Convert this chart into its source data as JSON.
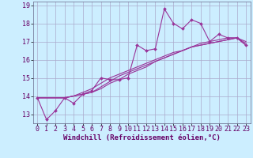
{
  "xlabel": "Windchill (Refroidissement éolien,°C)",
  "background_color": "#cceeff",
  "grid_color": "#aaaacc",
  "line_color": "#993399",
  "x_data": [
    0,
    1,
    2,
    3,
    4,
    5,
    6,
    7,
    8,
    9,
    10,
    11,
    12,
    13,
    14,
    15,
    16,
    17,
    18,
    19,
    20,
    21,
    22,
    23
  ],
  "y_series1": [
    13.9,
    12.7,
    13.2,
    13.9,
    13.6,
    14.1,
    14.3,
    15.0,
    14.9,
    14.9,
    15.0,
    16.8,
    16.5,
    16.6,
    18.8,
    18.0,
    17.7,
    18.2,
    18.0,
    17.0,
    17.4,
    17.2,
    17.2,
    16.8
  ],
  "y_series2": [
    13.9,
    13.9,
    13.9,
    13.9,
    14.0,
    14.2,
    14.4,
    14.7,
    15.0,
    15.2,
    15.4,
    15.6,
    15.8,
    16.0,
    16.2,
    16.4,
    16.5,
    16.7,
    16.9,
    17.0,
    17.1,
    17.2,
    17.2,
    17.0
  ],
  "y_series3": [
    13.9,
    13.9,
    13.9,
    13.9,
    14.0,
    14.1,
    14.2,
    14.5,
    14.8,
    15.1,
    15.3,
    15.5,
    15.7,
    15.9,
    16.1,
    16.3,
    16.5,
    16.7,
    16.8,
    16.9,
    17.0,
    17.1,
    17.2,
    16.9
  ],
  "y_series4": [
    13.9,
    13.9,
    13.9,
    13.9,
    14.0,
    14.1,
    14.2,
    14.4,
    14.7,
    14.9,
    15.2,
    15.4,
    15.6,
    15.9,
    16.1,
    16.3,
    16.5,
    16.7,
    16.8,
    16.9,
    17.0,
    17.1,
    17.2,
    16.8
  ],
  "ylim": [
    12.5,
    19.2
  ],
  "yticks": [
    13,
    14,
    15,
    16,
    17,
    18,
    19
  ],
  "xlim": [
    -0.5,
    23.5
  ],
  "xticks": [
    0,
    1,
    2,
    3,
    4,
    5,
    6,
    7,
    8,
    9,
    10,
    11,
    12,
    13,
    14,
    15,
    16,
    17,
    18,
    19,
    20,
    21,
    22,
    23
  ],
  "xlabel_fontsize": 6.5,
  "tick_fontsize": 6.0
}
